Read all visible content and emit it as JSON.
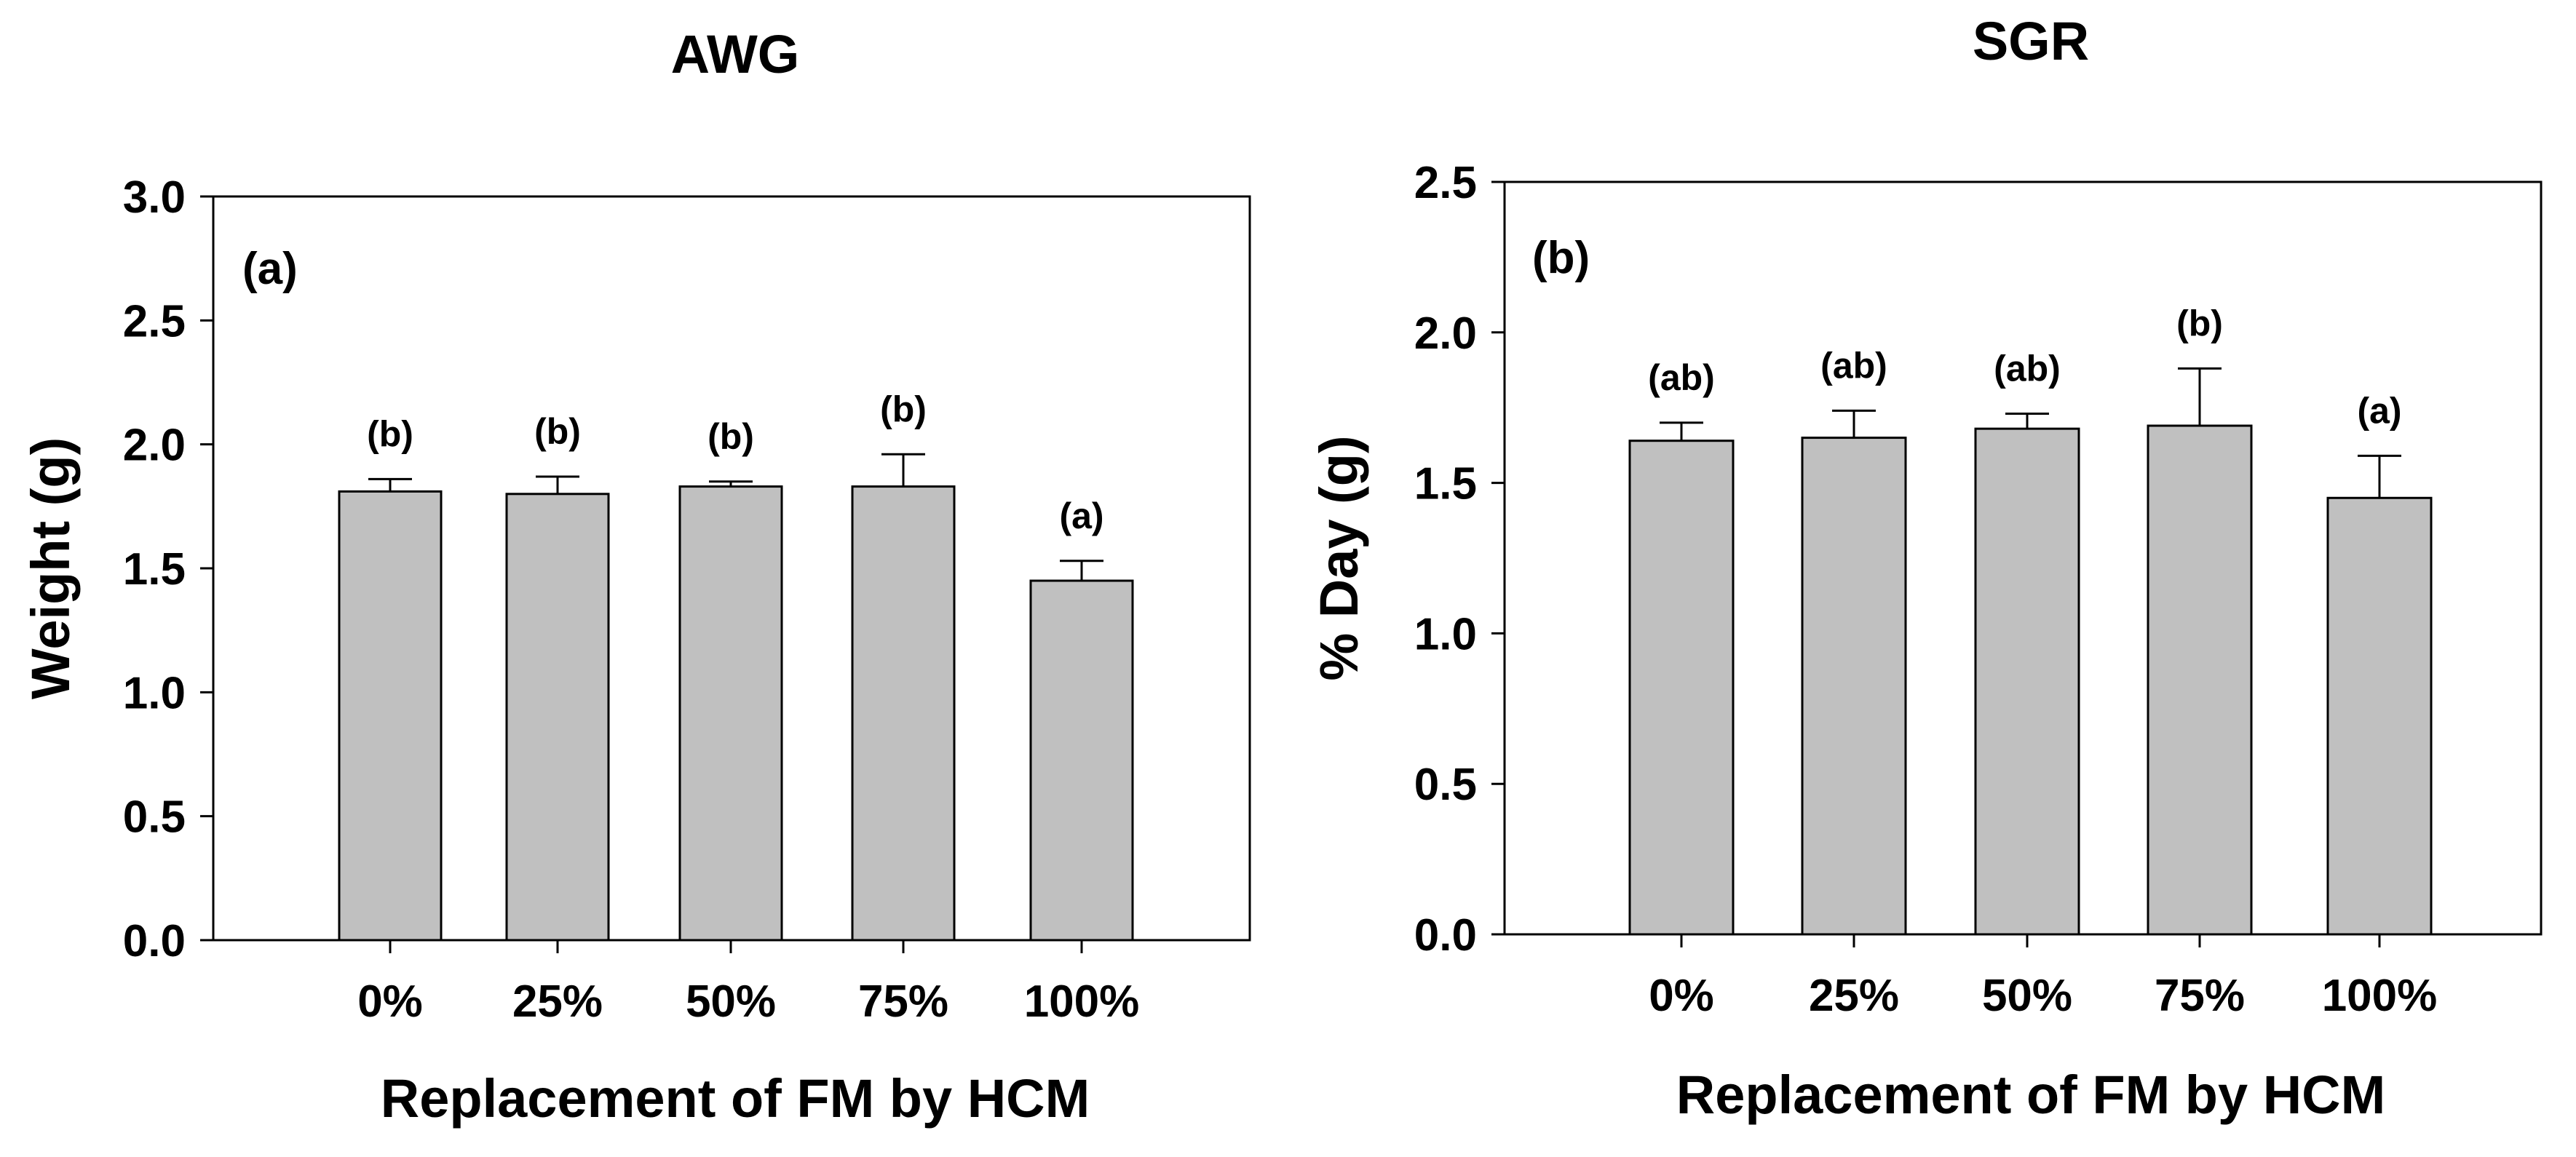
{
  "chart_data": [
    {
      "type": "bar",
      "title": "AWG",
      "panel_label": "(a)",
      "xlabel": "Replacement of FM by HCM",
      "ylabel": "Weight (g)",
      "ylim": [
        0,
        3.0
      ],
      "yticks": [
        0.0,
        0.5,
        1.0,
        1.5,
        2.0,
        2.5,
        3.0
      ],
      "ytick_labels": [
        "0.0",
        "0.5",
        "1.0",
        "1.5",
        "2.0",
        "2.5",
        "3.0"
      ],
      "categories": [
        "0%",
        "25%",
        "50%",
        "75%",
        "100%"
      ],
      "values": [
        1.81,
        1.8,
        1.83,
        1.83,
        1.45
      ],
      "errors": [
        0.05,
        0.07,
        0.02,
        0.13,
        0.08
      ],
      "significance": [
        "(b)",
        "(b)",
        "(b)",
        "(b)",
        "(a)"
      ],
      "grid": false
    },
    {
      "type": "bar",
      "title": "SGR",
      "panel_label": "(b)",
      "xlabel": "Replacement of FM by HCM",
      "ylabel": "% Day (g)",
      "ylim": [
        0,
        2.5
      ],
      "yticks": [
        0.0,
        0.5,
        1.0,
        1.5,
        2.0,
        2.5
      ],
      "ytick_labels": [
        "0.0",
        "0.5",
        "1.0",
        "1.5",
        "2.0",
        "2.5"
      ],
      "categories": [
        "0%",
        "25%",
        "50%",
        "75%",
        "100%"
      ],
      "values": [
        1.64,
        1.65,
        1.68,
        1.69,
        1.45
      ],
      "errors": [
        0.06,
        0.09,
        0.05,
        0.19,
        0.14
      ],
      "significance": [
        "(ab)",
        "(ab)",
        "(ab)",
        "(b)",
        "(a)"
      ],
      "grid": false
    }
  ]
}
